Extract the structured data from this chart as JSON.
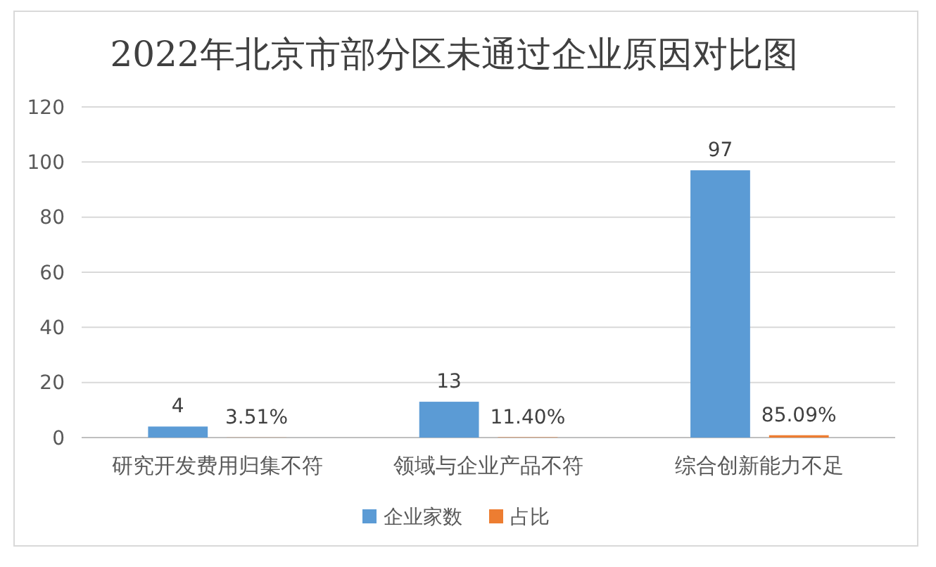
{
  "chart_data": {
    "type": "bar",
    "title": "2022年北京市部分区未通过企业原因对比图",
    "categories": [
      "研究开发费用归集不符",
      "领域与企业产品不符",
      "综合创新能力不足"
    ],
    "series": [
      {
        "name": "企业家数",
        "color": "#5b9bd5",
        "values": [
          4,
          13,
          97
        ],
        "value_labels": [
          "4",
          "13",
          "97"
        ]
      },
      {
        "name": "占比",
        "color": "#ed7d31",
        "values": [
          0.0351,
          0.114,
          0.8509
        ],
        "value_labels": [
          "3.51%",
          "11.40%",
          "85.09%"
        ]
      }
    ],
    "ylim": [
      0,
      120
    ],
    "yticks": [
      0,
      20,
      40,
      60,
      80,
      100,
      120
    ],
    "grid": "y",
    "legend": "bottom"
  }
}
